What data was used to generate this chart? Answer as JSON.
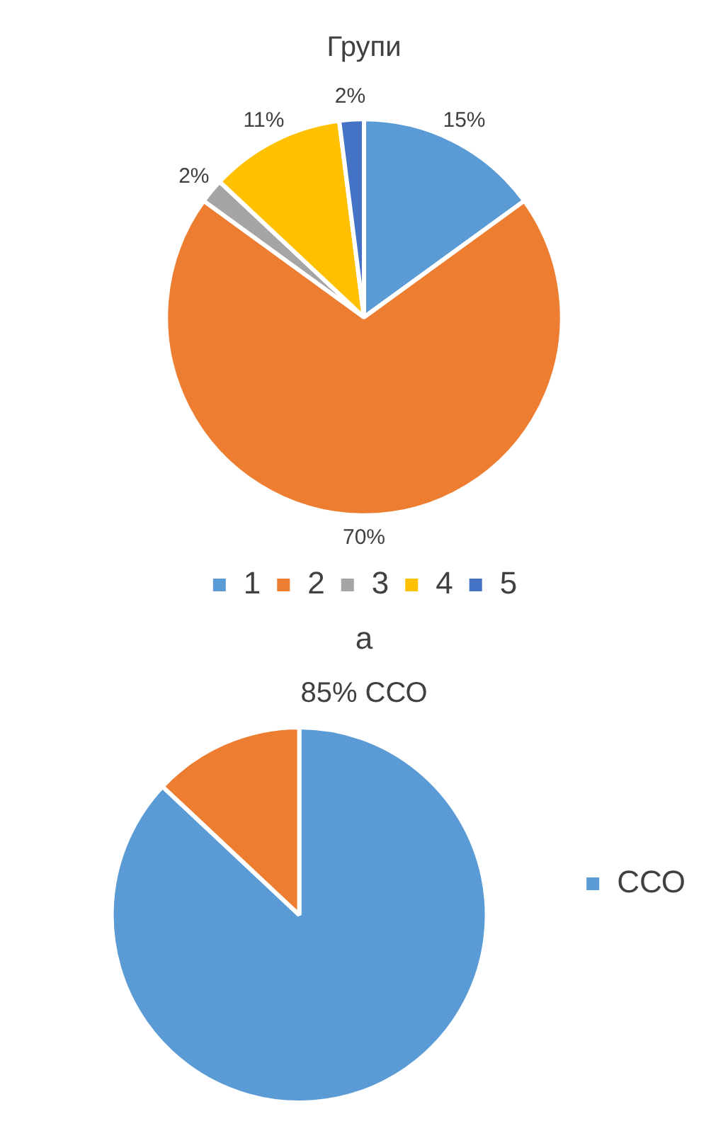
{
  "chart_data": [
    {
      "type": "pie",
      "title": "Групи",
      "categories": [
        "1",
        "2",
        "3",
        "4",
        "5"
      ],
      "values": [
        15,
        70,
        2,
        11,
        2
      ],
      "colors": [
        "#5b9bd5",
        "#ed7d31",
        "#a5a5a5",
        "#ffc000",
        "#4472c4"
      ],
      "value_labels": [
        "15%",
        "70%",
        "2%",
        "11%",
        "2%"
      ],
      "legend": "bottom",
      "annotations": [
        "а"
      ]
    },
    {
      "type": "pie",
      "title": "85% ССО",
      "categories": [
        "ССО",
        null
      ],
      "values": [
        87,
        13
      ],
      "colors": [
        "#5b9bd5",
        "#ed7d31"
      ],
      "legend": "right"
    }
  ]
}
